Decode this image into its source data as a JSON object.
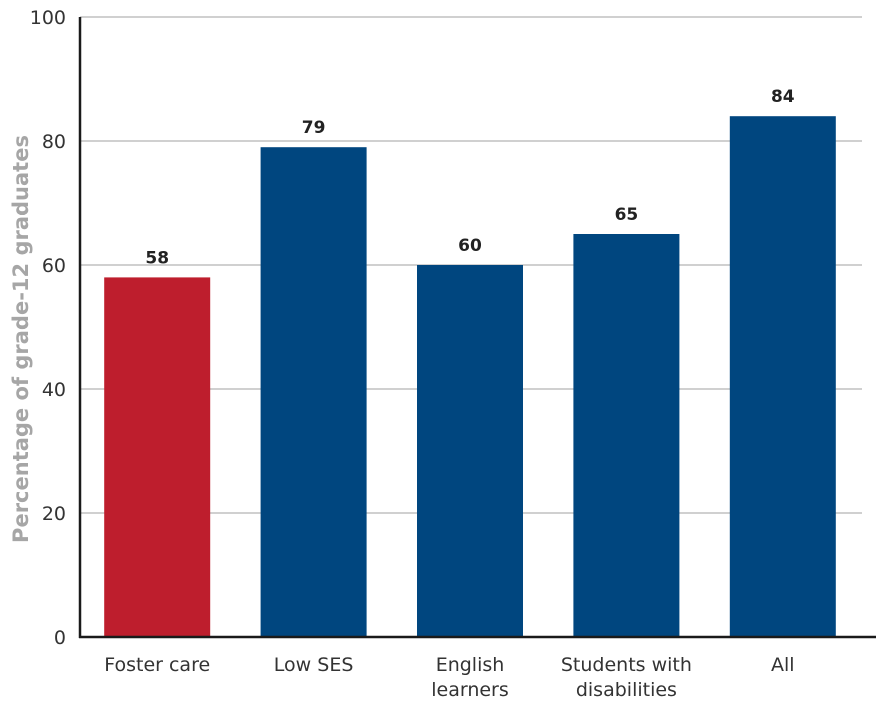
{
  "chart_data": {
    "type": "bar",
    "title": "",
    "xlabel": "",
    "ylabel": "Percentage of grade-12 graduates",
    "ylim": [
      0,
      100
    ],
    "yticks": [
      "0",
      "20",
      "40",
      "60",
      "80",
      "100"
    ],
    "grid": true,
    "categories": [
      [
        "Foster care"
      ],
      [
        "Low SES"
      ],
      [
        "English",
        "learners"
      ],
      [
        "Students with",
        "disabilities"
      ],
      [
        "All"
      ]
    ],
    "values": [
      58,
      79,
      60,
      65,
      84
    ],
    "data_labels": [
      "58",
      "79",
      "60",
      "65",
      "84"
    ],
    "colors": [
      "#be1e2d",
      "#00467f",
      "#00467f",
      "#00467f",
      "#00467f"
    ]
  }
}
